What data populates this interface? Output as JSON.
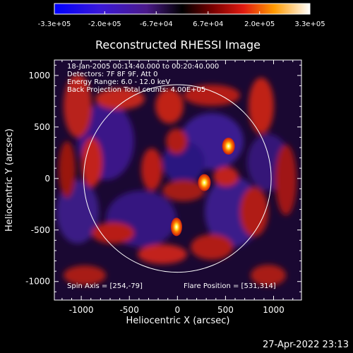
{
  "colorbar": {
    "tick_labels": [
      "-3.3e+05",
      "-2.0e+05",
      "-6.7e+04",
      "6.7e+04",
      "2.0e+05",
      "3.3e+05"
    ]
  },
  "plot": {
    "title": "Reconstructed RHESSI Image",
    "xlabel": "Heliocentric X (arcsec)",
    "ylabel": "Heliocentric Y (arcsec)",
    "info_lines": [
      "18-Jan-2005 00:14:40.000 to 00:20:40.000",
      "Detectors: 7F 8F 9F, Att 0",
      "Energy Range: 6.0 - 12.0 keV",
      "Back Projection    Total counts: 4.00E+05"
    ],
    "spin_axis": "Spin Axis = [254,-79]",
    "flare_position": "Flare Position = [531,314]"
  },
  "chart_data": {
    "type": "heatmap",
    "title": "Reconstructed RHESSI Image",
    "xlabel": "Heliocentric X (arcsec)",
    "ylabel": "Heliocentric Y (arcsec)",
    "xlim": [
      -1280,
      1290
    ],
    "ylim": [
      -1180,
      1150
    ],
    "x_ticks": [
      -1000,
      -500,
      0,
      500,
      1000
    ],
    "y_ticks": [
      -1000,
      -500,
      0,
      500,
      1000
    ],
    "colorbar_range": [
      -330000,
      330000
    ],
    "colorbar_ticks": [
      -330000,
      -200000,
      -67000,
      67000,
      200000,
      330000
    ],
    "solar_disk_radius_arcsec": 975,
    "bright_sources": [
      {
        "x": 531,
        "y": 314,
        "level": "max"
      },
      {
        "x": 280,
        "y": -40,
        "level": "max"
      },
      {
        "x": -10,
        "y": -470,
        "level": "high"
      }
    ]
  },
  "footer": {
    "timestamp": "27-Apr-2022 23:13"
  },
  "colors": {
    "background": "#000000",
    "foreground": "#ffffff",
    "negative": "#2a0aa8",
    "neutral": "#000000",
    "positive": "#d81a12",
    "hot": "#ffffe0"
  }
}
